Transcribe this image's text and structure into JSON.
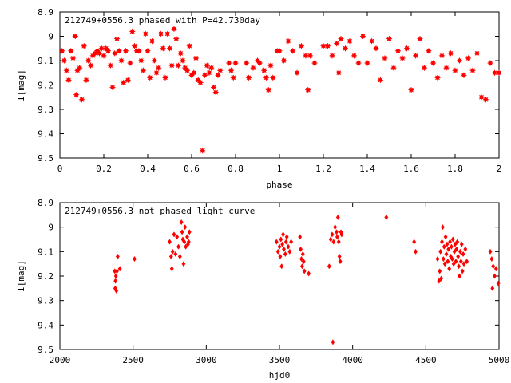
{
  "chart_data": [
    {
      "type": "scatter",
      "title": "212749+0556.3 phased with P=42.730day",
      "xlabel": "phase",
      "ylabel": "I[mag]",
      "xlim": [
        0,
        2
      ],
      "ylim": [
        9.5,
        8.9
      ],
      "y_inverted": true,
      "grid": false,
      "marker_color": "#ff0000",
      "marker": "star",
      "xticks": [
        "0",
        "0.2",
        "0.4",
        "0.6",
        "0.8",
        "1",
        "1.2",
        "1.4",
        "1.6",
        "1.8",
        "2"
      ],
      "yticks": [
        "8.9",
        "9",
        "9.1",
        "9.2",
        "9.3",
        "9.4",
        "9.5"
      ],
      "series": [
        {
          "points": [
            [
              0.01,
              9.06
            ],
            [
              0.02,
              9.1
            ],
            [
              0.03,
              9.14
            ],
            [
              0.04,
              9.18
            ],
            [
              0.05,
              9.06
            ],
            [
              0.06,
              9.09
            ],
            [
              0.07,
              9.0
            ],
            [
              0.075,
              9.24
            ],
            [
              0.08,
              9.14
            ],
            [
              0.09,
              9.13
            ],
            [
              0.1,
              9.26
            ],
            [
              0.11,
              9.04
            ],
            [
              0.12,
              9.18
            ],
            [
              0.13,
              9.1
            ],
            [
              0.14,
              9.12
            ],
            [
              0.15,
              9.08
            ],
            [
              0.16,
              9.07
            ],
            [
              0.17,
              9.06
            ],
            [
              0.18,
              9.07
            ],
            [
              0.19,
              9.05
            ],
            [
              0.2,
              9.08
            ],
            [
              0.21,
              9.05
            ],
            [
              0.22,
              9.06
            ],
            [
              0.23,
              9.12
            ],
            [
              0.24,
              9.21
            ],
            [
              0.25,
              9.07
            ],
            [
              0.26,
              9.01
            ],
            [
              0.27,
              9.06
            ],
            [
              0.28,
              9.1
            ],
            [
              0.29,
              9.19
            ],
            [
              0.3,
              9.06
            ],
            [
              0.31,
              9.18
            ],
            [
              0.32,
              9.11
            ],
            [
              0.33,
              8.98
            ],
            [
              0.34,
              9.04
            ],
            [
              0.35,
              9.06
            ],
            [
              0.36,
              9.06
            ],
            [
              0.37,
              9.1
            ],
            [
              0.38,
              9.14
            ],
            [
              0.39,
              8.99
            ],
            [
              0.4,
              9.06
            ],
            [
              0.41,
              9.17
            ],
            [
              0.42,
              9.02
            ],
            [
              0.43,
              9.1
            ],
            [
              0.44,
              9.15
            ],
            [
              0.45,
              9.13
            ],
            [
              0.46,
              8.99
            ],
            [
              0.47,
              9.05
            ],
            [
              0.48,
              9.17
            ],
            [
              0.49,
              8.99
            ],
            [
              0.5,
              9.05
            ],
            [
              0.51,
              9.12
            ],
            [
              0.52,
              8.97
            ],
            [
              0.53,
              9.01
            ],
            [
              0.54,
              9.12
            ],
            [
              0.55,
              9.07
            ],
            [
              0.56,
              9.1
            ],
            [
              0.57,
              9.13
            ],
            [
              0.58,
              9.14
            ],
            [
              0.59,
              9.04
            ],
            [
              0.6,
              9.16
            ],
            [
              0.61,
              9.15
            ],
            [
              0.62,
              9.09
            ],
            [
              0.63,
              9.18
            ],
            [
              0.64,
              9.19
            ],
            [
              0.65,
              9.47
            ],
            [
              0.66,
              9.16
            ],
            [
              0.67,
              9.12
            ],
            [
              0.68,
              9.15
            ],
            [
              0.69,
              9.13
            ],
            [
              0.7,
              9.21
            ],
            [
              0.71,
              9.23
            ],
            [
              0.72,
              9.16
            ],
            [
              0.73,
              9.14
            ],
            [
              0.77,
              9.11
            ],
            [
              0.78,
              9.14
            ],
            [
              0.79,
              9.17
            ],
            [
              0.8,
              9.11
            ],
            [
              0.85,
              9.11
            ],
            [
              0.86,
              9.17
            ],
            [
              0.88,
              9.13
            ],
            [
              0.9,
              9.1
            ],
            [
              0.91,
              9.11
            ],
            [
              0.93,
              9.14
            ],
            [
              0.94,
              9.17
            ],
            [
              0.95,
              9.22
            ],
            [
              0.96,
              9.12
            ],
            [
              0.97,
              9.17
            ],
            [
              0.99,
              9.06
            ],
            [
              1.0,
              9.06
            ],
            [
              1.02,
              9.1
            ],
            [
              1.04,
              9.02
            ],
            [
              1.06,
              9.06
            ],
            [
              1.08,
              9.15
            ],
            [
              1.1,
              9.04
            ],
            [
              1.12,
              9.08
            ],
            [
              1.13,
              9.22
            ],
            [
              1.14,
              9.08
            ],
            [
              1.16,
              9.11
            ],
            [
              1.2,
              9.04
            ],
            [
              1.22,
              9.04
            ],
            [
              1.24,
              9.08
            ],
            [
              1.26,
              9.03
            ],
            [
              1.27,
              9.15
            ],
            [
              1.28,
              9.01
            ],
            [
              1.3,
              9.05
            ],
            [
              1.32,
              9.02
            ],
            [
              1.34,
              9.08
            ],
            [
              1.36,
              9.11
            ],
            [
              1.38,
              9.0
            ],
            [
              1.4,
              9.11
            ],
            [
              1.42,
              9.02
            ],
            [
              1.44,
              9.05
            ],
            [
              1.46,
              9.18
            ],
            [
              1.48,
              9.09
            ],
            [
              1.5,
              9.01
            ],
            [
              1.52,
              9.13
            ],
            [
              1.54,
              9.06
            ],
            [
              1.56,
              9.09
            ],
            [
              1.58,
              9.05
            ],
            [
              1.6,
              9.22
            ],
            [
              1.62,
              9.08
            ],
            [
              1.64,
              9.01
            ],
            [
              1.66,
              9.13
            ],
            [
              1.68,
              9.06
            ],
            [
              1.7,
              9.11
            ],
            [
              1.72,
              9.17
            ],
            [
              1.74,
              9.08
            ],
            [
              1.76,
              9.13
            ],
            [
              1.78,
              9.07
            ],
            [
              1.8,
              9.14
            ],
            [
              1.82,
              9.1
            ],
            [
              1.84,
              9.16
            ],
            [
              1.86,
              9.09
            ],
            [
              1.88,
              9.14
            ],
            [
              1.9,
              9.07
            ],
            [
              1.92,
              9.25
            ],
            [
              1.94,
              9.26
            ],
            [
              1.96,
              9.11
            ],
            [
              1.98,
              9.15
            ],
            [
              2.0,
              9.15
            ]
          ]
        }
      ]
    },
    {
      "type": "scatter",
      "title": "212749+0556.3 not phased light curve",
      "xlabel": "hjd0",
      "ylabel": "I[mag]",
      "xlim": [
        2000,
        5000
      ],
      "ylim": [
        9.5,
        8.9
      ],
      "y_inverted": true,
      "grid": false,
      "marker_color": "#ff0000",
      "marker": "diamond",
      "xticks": [
        "2000",
        "2500",
        "3000",
        "3500",
        "4000",
        "4500",
        "5000"
      ],
      "yticks": [
        "8.9",
        "9",
        "9.1",
        "9.2",
        "9.3",
        "9.4",
        "9.5"
      ],
      "series": [
        {
          "points": [
            [
              2375,
              9.18
            ],
            [
              2378,
              9.25
            ],
            [
              2380,
              9.22
            ],
            [
              2383,
              9.2
            ],
            [
              2386,
              9.26
            ],
            [
              2390,
              9.18
            ],
            [
              2395,
              9.12
            ],
            [
              2410,
              9.17
            ],
            [
              2510,
              9.13
            ],
            [
              2750,
              9.06
            ],
            [
              2760,
              9.12
            ],
            [
              2765,
              9.17
            ],
            [
              2770,
              9.1
            ],
            [
              2780,
              9.03
            ],
            [
              2790,
              9.11
            ],
            [
              2800,
              9.04
            ],
            [
              2810,
              9.08
            ],
            [
              2820,
              9.12
            ],
            [
              2830,
              8.98
            ],
            [
              2835,
              9.02
            ],
            [
              2840,
              9.05
            ],
            [
              2845,
              9.15
            ],
            [
              2850,
              9.06
            ],
            [
              2855,
              9.0
            ],
            [
              2860,
              9.08
            ],
            [
              2870,
              9.04
            ],
            [
              2875,
              9.07
            ],
            [
              2880,
              9.06
            ],
            [
              2885,
              9.02
            ],
            [
              3480,
              9.06
            ],
            [
              3490,
              9.1
            ],
            [
              3500,
              9.08
            ],
            [
              3505,
              9.12
            ],
            [
              3510,
              9.05
            ],
            [
              3515,
              9.16
            ],
            [
              3520,
              9.07
            ],
            [
              3525,
              9.03
            ],
            [
              3530,
              9.09
            ],
            [
              3540,
              9.11
            ],
            [
              3545,
              9.06
            ],
            [
              3550,
              9.04
            ],
            [
              3560,
              9.08
            ],
            [
              3570,
              9.1
            ],
            [
              3580,
              9.06
            ],
            [
              3640,
              9.04
            ],
            [
              3645,
              9.09
            ],
            [
              3650,
              9.13
            ],
            [
              3655,
              9.16
            ],
            [
              3660,
              9.11
            ],
            [
              3665,
              9.14
            ],
            [
              3670,
              9.18
            ],
            [
              3700,
              9.19
            ],
            [
              3840,
              9.16
            ],
            [
              3850,
              9.05
            ],
            [
              3860,
              9.03
            ],
            [
              3865,
              9.47
            ],
            [
              3870,
              9.06
            ],
            [
              3880,
              9.0
            ],
            [
              3890,
              9.02
            ],
            [
              3895,
              9.04
            ],
            [
              3900,
              8.96
            ],
            [
              3905,
              9.06
            ],
            [
              3910,
              9.12
            ],
            [
              3915,
              9.14
            ],
            [
              3920,
              9.02
            ],
            [
              3925,
              9.03
            ],
            [
              4230,
              8.96
            ],
            [
              4420,
              9.06
            ],
            [
              4430,
              9.1
            ],
            [
              4580,
              9.13
            ],
            [
              4590,
              9.22
            ],
            [
              4595,
              9.18
            ],
            [
              4600,
              9.1
            ],
            [
              4605,
              9.21
            ],
            [
              4610,
              9.06
            ],
            [
              4615,
              9.0
            ],
            [
              4620,
              9.13
            ],
            [
              4625,
              9.08
            ],
            [
              4630,
              9.15
            ],
            [
              4635,
              9.04
            ],
            [
              4640,
              9.11
            ],
            [
              4645,
              9.07
            ],
            [
              4650,
              9.14
            ],
            [
              4655,
              9.09
            ],
            [
              4660,
              9.17
            ],
            [
              4665,
              9.06
            ],
            [
              4670,
              9.12
            ],
            [
              4675,
              9.08
            ],
            [
              4680,
              9.13
            ],
            [
              4685,
              9.05
            ],
            [
              4690,
              9.15
            ],
            [
              4695,
              9.1
            ],
            [
              4700,
              9.07
            ],
            [
              4705,
              9.14
            ],
            [
              4710,
              9.09
            ],
            [
              4715,
              9.06
            ],
            [
              4720,
              9.12
            ],
            [
              4725,
              9.16
            ],
            [
              4730,
              9.2
            ],
            [
              4735,
              9.1
            ],
            [
              4740,
              9.14
            ],
            [
              4745,
              9.07
            ],
            [
              4750,
              9.18
            ],
            [
              4755,
              9.11
            ],
            [
              4760,
              9.15
            ],
            [
              4770,
              9.09
            ],
            [
              4780,
              9.14
            ],
            [
              4940,
              9.1
            ],
            [
              4950,
              9.13
            ],
            [
              4955,
              9.25
            ],
            [
              4960,
              9.16
            ],
            [
              4970,
              9.2
            ],
            [
              4980,
              9.17
            ],
            [
              4995,
              9.23
            ]
          ]
        }
      ]
    }
  ]
}
